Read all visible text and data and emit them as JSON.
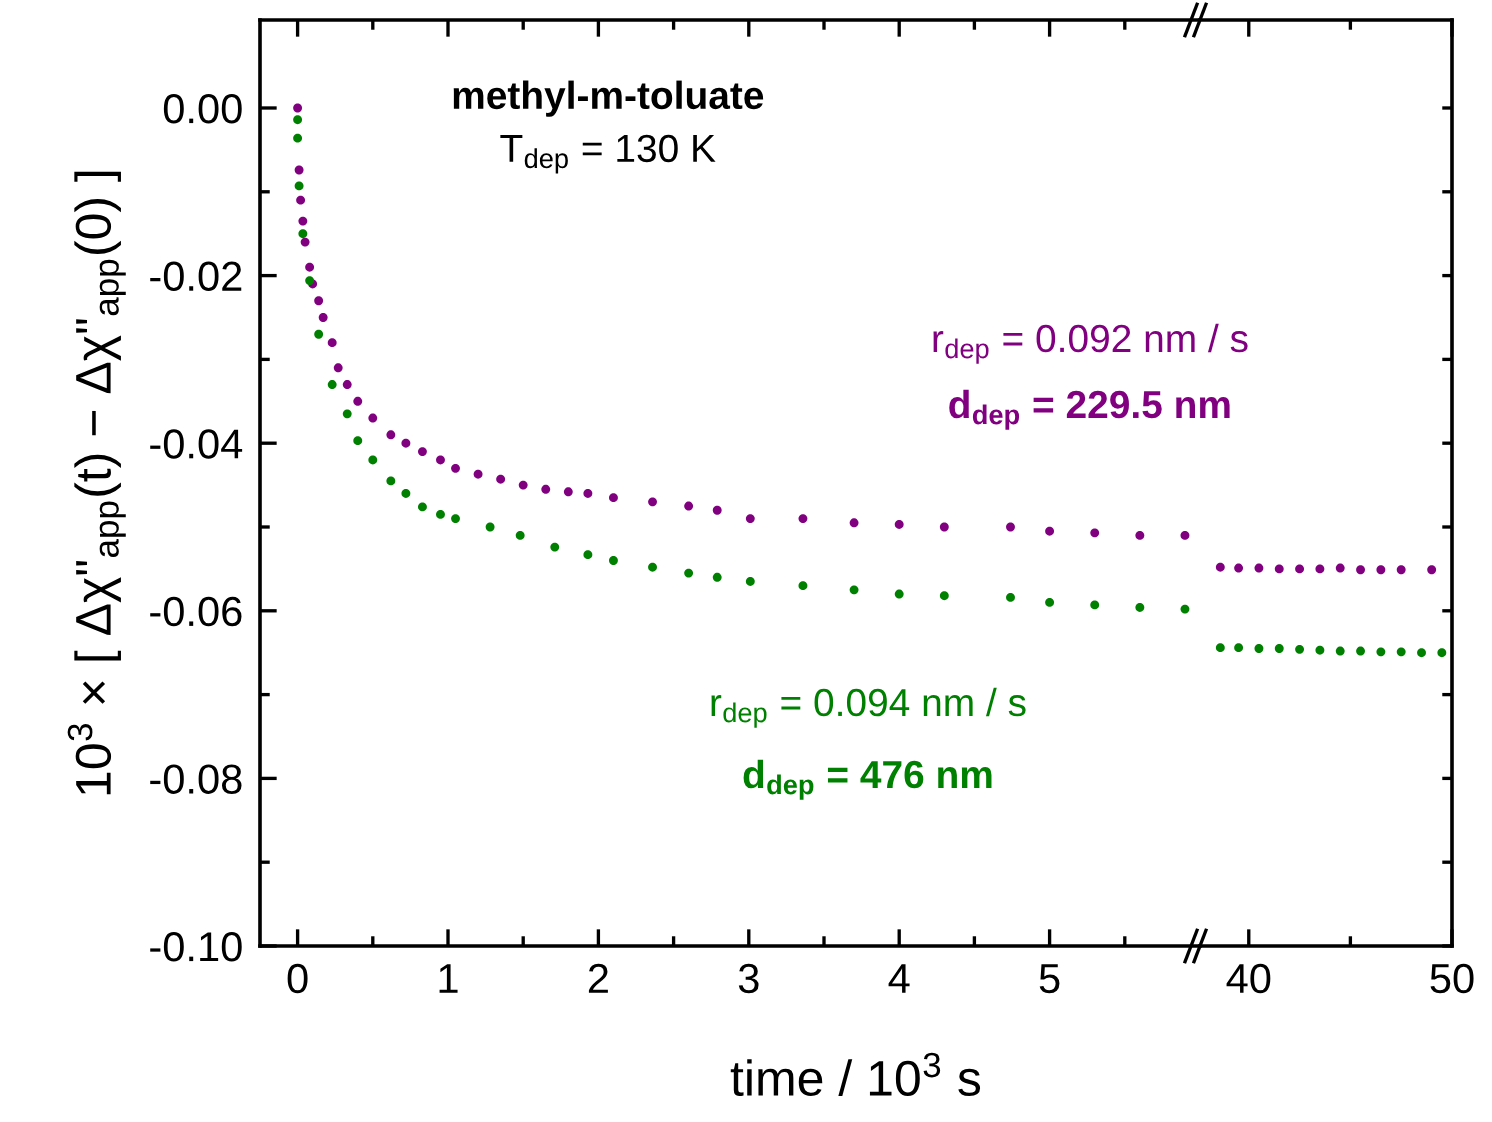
{
  "chart_data": [
    {
      "type": "scatter",
      "title": "methyl-m-toluate",
      "subtitle": "T$_{dep}$ = 130 K",
      "xlabel": "time / 10$^{3}$ s",
      "ylabel": "10$^{3}$ × [ Δχ\"$_{app}$(t) − Δχ\"$_{app}$(0) ]",
      "annotations": [
        "r$_{dep}$ = 0.092 nm / s",
        "d$_{dep}$ = 229.5 nm",
        "r$_{dep}$ = 0.094 nm / s",
        "d$_{dep}$ = 476 nm"
      ],
      "marker": "circle",
      "grid": false,
      "legend": false,
      "xlim": [
        -0.25,
        6.0
      ],
      "ylim": [
        -0.1,
        0.0105
      ],
      "xticks": [
        0,
        {
          "value": 0.5,
          "label": null
        },
        1,
        {
          "value": 1.5,
          "label": null
        },
        2,
        {
          "value": 2.5,
          "label": null
        },
        3,
        {
          "value": 3.5,
          "label": null
        },
        4,
        {
          "value": 4.5,
          "label": null
        },
        5,
        {
          "value": 5.5,
          "label": null
        }
      ],
      "yticks": [
        {
          "value": 0,
          "label": "0.00"
        },
        {
          "value": -0.01,
          "label": null
        },
        {
          "value": -0.02,
          "label": "-0.02"
        },
        {
          "value": -0.03,
          "label": null
        },
        {
          "value": -0.04,
          "label": "-0.04"
        },
        {
          "value": -0.05,
          "label": null
        },
        {
          "value": -0.06,
          "label": "-0.06"
        },
        {
          "value": -0.07,
          "label": null
        },
        {
          "value": -0.08,
          "label": "-0.08"
        },
        {
          "value": -0.09,
          "label": null
        },
        {
          "value": -0.1,
          "label": "-0.10"
        }
      ],
      "series": [
        {
          "color": "#800080",
          "x": [
            0,
            0.01,
            0.02,
            0.035,
            0.05,
            0.08,
            0.1,
            0.14,
            0.17,
            0.23,
            0.27,
            0.33,
            0.4,
            0.5,
            0.62,
            0.72,
            0.83,
            0.95,
            1.05,
            1.2,
            1.35,
            1.5,
            1.65,
            1.8,
            1.93,
            2.1,
            2.36,
            2.6,
            2.79,
            3.01,
            3.36,
            3.7,
            4.0,
            4.3,
            4.74,
            5.0,
            5.3,
            5.6,
            5.9
          ],
          "values": [
            0,
            -0.0074,
            -0.011,
            -0.0135,
            -0.016,
            -0.019,
            -0.021,
            -0.023,
            -0.025,
            -0.028,
            -0.031,
            -0.033,
            -0.035,
            -0.037,
            -0.039,
            -0.04,
            -0.041,
            -0.042,
            -0.043,
            -0.0437,
            -0.0443,
            -0.045,
            -0.0455,
            -0.0458,
            -0.046,
            -0.0465,
            -0.047,
            -0.0475,
            -0.048,
            -0.049,
            -0.049,
            -0.0495,
            -0.0497,
            -0.05,
            -0.05,
            -0.0505,
            -0.0507,
            -0.051,
            -0.051
          ]
        },
        {
          "color": "#008000",
          "x": [
            0,
            0,
            0.01,
            0.035,
            0.08,
            0.14,
            0.23,
            0.33,
            0.4,
            0.5,
            0.62,
            0.72,
            0.83,
            0.95,
            1.05,
            1.28,
            1.48,
            1.71,
            1.93,
            2.1,
            2.36,
            2.6,
            2.79,
            3.01,
            3.36,
            3.7,
            4.0,
            4.3,
            4.74,
            5.0,
            5.3,
            5.6,
            5.9
          ],
          "values": [
            -0.0014,
            -0.0036,
            -0.0093,
            -0.015,
            -0.0206,
            -0.027,
            -0.033,
            -0.0365,
            -0.0397,
            -0.042,
            -0.0445,
            -0.046,
            -0.0476,
            -0.0485,
            -0.049,
            -0.05,
            -0.051,
            -0.0524,
            -0.0533,
            -0.054,
            -0.0548,
            -0.0555,
            -0.056,
            -0.0565,
            -0.057,
            -0.0575,
            -0.058,
            -0.0582,
            -0.0584,
            -0.059,
            -0.0593,
            -0.0596,
            -0.0598
          ]
        }
      ]
    },
    {
      "type": "scatter",
      "marker": "circle",
      "grid": false,
      "legend": false,
      "tick_labels": "x",
      "xlim": [
        37.6,
        50
      ],
      "ylim": [
        -0.1,
        0.0105
      ],
      "xticks": [
        40,
        {
          "value": 45,
          "label": null
        },
        50
      ],
      "yticks": [
        {
          "value": 0,
          "label": null
        },
        {
          "value": -0.01,
          "label": null
        },
        {
          "value": -0.02,
          "label": null
        },
        {
          "value": -0.03,
          "label": null
        },
        {
          "value": -0.04,
          "label": null
        },
        {
          "value": -0.05,
          "label": null
        },
        {
          "value": -0.06,
          "label": null
        },
        {
          "value": -0.07,
          "label": null
        },
        {
          "value": -0.08,
          "label": null
        },
        {
          "value": -0.09,
          "label": null
        },
        {
          "value": -0.1,
          "label": null
        }
      ],
      "series": [
        {
          "color": "#800080",
          "x": [
            38.6,
            39.5,
            40.5,
            41.5,
            42.5,
            43.5,
            44.5,
            45.5,
            46.5,
            47.5,
            49
          ],
          "values": [
            -0.0548,
            -0.0549,
            -0.0549,
            -0.055,
            -0.055,
            -0.055,
            -0.0549,
            -0.0551,
            -0.0551,
            -0.0551,
            -0.0551
          ]
        },
        {
          "color": "#008000",
          "x": [
            38.6,
            39.5,
            40.5,
            41.5,
            42.5,
            43.5,
            44.5,
            45.5,
            46.5,
            47.5,
            48.5,
            49.5
          ],
          "values": [
            -0.0644,
            -0.0644,
            -0.0645,
            -0.0645,
            -0.0646,
            -0.0647,
            -0.0648,
            -0.0648,
            -0.0649,
            -0.0649,
            -0.065,
            -0.065
          ]
        }
      ]
    }
  ]
}
